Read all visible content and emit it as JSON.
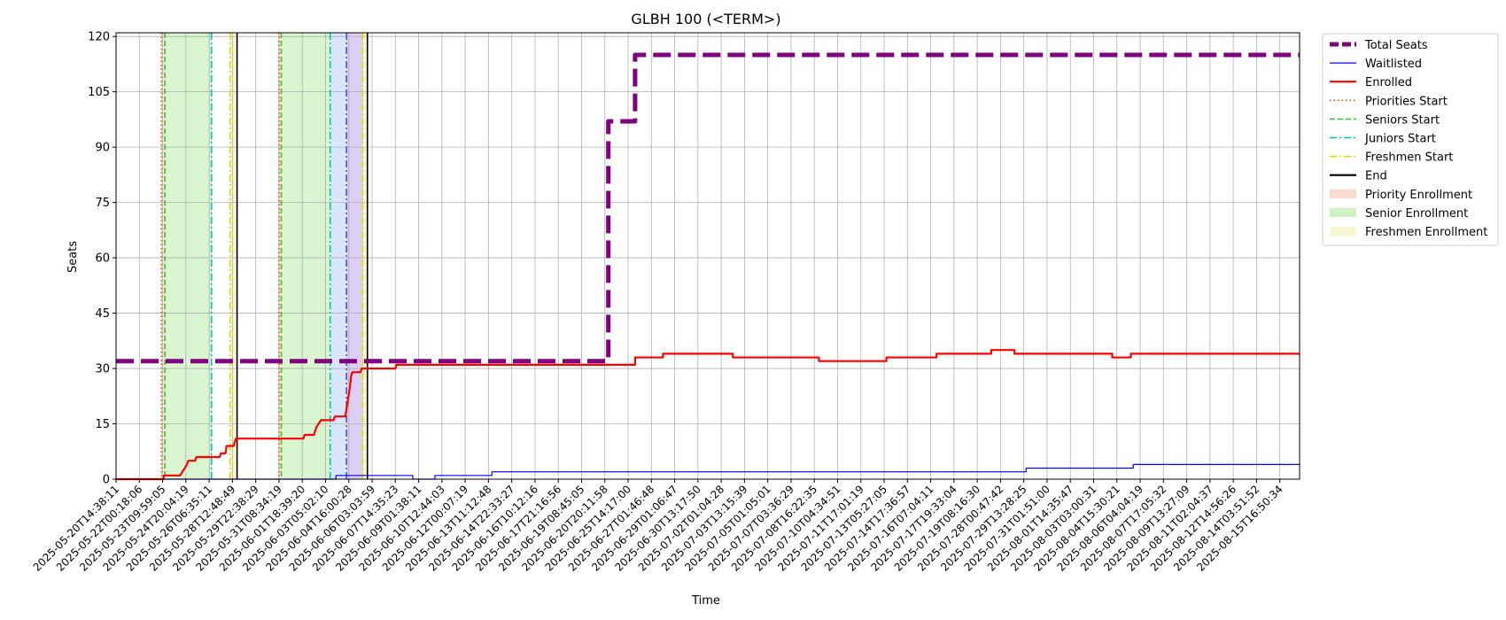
{
  "chart_data": {
    "type": "line",
    "title": "GLBH 100 (<TERM>)",
    "xlabel": "Time",
    "ylabel": "Seats",
    "ylim": [
      0,
      121
    ],
    "yticks": [
      0,
      15,
      30,
      45,
      60,
      75,
      90,
      105,
      120
    ],
    "grid": true,
    "legend_position": "outside-right-top",
    "x_tick_labels": [
      "2025-05-20T14:38:11",
      "2025-05-22T00:18:06",
      "2025-05-23T09:59:05",
      "2025-05-24T20:04:19",
      "2025-05-26T06:35:11",
      "2025-05-28T12:48:49",
      "2025-05-29T22:38:29",
      "2025-05-31T08:34:19",
      "2025-06-01T18:39:20",
      "2025-06-03T05:02:10",
      "2025-06-04T16:00:28",
      "2025-06-06T03:03:59",
      "2025-06-07T14:35:23",
      "2025-06-09T01:38:11",
      "2025-06-10T12:44:03",
      "2025-06-12T00:07:19",
      "2025-06-13T11:12:48",
      "2025-06-14T22:33:27",
      "2025-06-16T10:12:16",
      "2025-06-17T21:16:56",
      "2025-06-19T08:45:05",
      "2025-06-20T20:11:58",
      "2025-06-25T14:17:00",
      "2025-06-27T01:46:48",
      "2025-06-29T01:06:47",
      "2025-06-30T13:17:50",
      "2025-07-02T01:04:28",
      "2025-07-03T13:15:39",
      "2025-07-05T01:05:01",
      "2025-07-07T03:36:29",
      "2025-07-08T16:22:35",
      "2025-07-10T04:34:51",
      "2025-07-11T17:01:19",
      "2025-07-13T05:27:05",
      "2025-07-14T17:36:57",
      "2025-07-16T07:04:11",
      "2025-07-17T19:33:04",
      "2025-07-19T08:16:30",
      "2025-07-28T00:47:42",
      "2025-07-29T13:28:25",
      "2025-07-31T01:51:00",
      "2025-08-01T14:35:47",
      "2025-08-03T03:00:31",
      "2025-08-04T15:30:21",
      "2025-08-06T04:04:19",
      "2025-08-07T17:05:32",
      "2025-08-09T13:27:09",
      "2025-08-11T02:04:37",
      "2025-08-12T14:56:26",
      "2025-08-14T03:51:52",
      "2025-08-15T16:50:34"
    ],
    "x_range_index": [
      0,
      50.85
    ],
    "series": [
      {
        "name": "Total Seats",
        "color": "#800080",
        "style": "dashed-thick",
        "points": [
          [
            0,
            32
          ],
          [
            21.15,
            32
          ],
          [
            21.15,
            97
          ],
          [
            22.3,
            97
          ],
          [
            22.3,
            115
          ],
          [
            50.85,
            115
          ]
        ]
      },
      {
        "name": "Waitlisted",
        "color": "#0000ff",
        "style": "solid-thin",
        "points": [
          [
            0,
            0
          ],
          [
            9.45,
            0
          ],
          [
            9.45,
            1
          ],
          [
            12.75,
            1
          ],
          [
            12.75,
            0
          ],
          [
            13.7,
            0
          ],
          [
            13.7,
            1
          ],
          [
            16.15,
            1
          ],
          [
            16.15,
            2
          ],
          [
            39.1,
            2
          ],
          [
            39.1,
            3
          ],
          [
            43.7,
            3
          ],
          [
            43.7,
            4
          ],
          [
            50.85,
            4
          ]
        ]
      },
      {
        "name": "Enrolled",
        "color": "#ff0000",
        "style": "solid",
        "points": [
          [
            0,
            0
          ],
          [
            2.05,
            0
          ],
          [
            2.05,
            1
          ],
          [
            2.75,
            1
          ],
          [
            2.85,
            2
          ],
          [
            2.95,
            3
          ],
          [
            3.05,
            4
          ],
          [
            3.1,
            5
          ],
          [
            3.4,
            5
          ],
          [
            3.45,
            6
          ],
          [
            4.45,
            6
          ],
          [
            4.5,
            7
          ],
          [
            4.7,
            7
          ],
          [
            4.75,
            9
          ],
          [
            5.05,
            9
          ],
          [
            5.15,
            11
          ],
          [
            8.05,
            11
          ],
          [
            8.1,
            12
          ],
          [
            8.5,
            12
          ],
          [
            8.6,
            14
          ],
          [
            8.7,
            15
          ],
          [
            8.8,
            16
          ],
          [
            9.35,
            16
          ],
          [
            9.4,
            17
          ],
          [
            9.85,
            17
          ],
          [
            9.9,
            19
          ],
          [
            9.95,
            21
          ],
          [
            10.0,
            23
          ],
          [
            10.05,
            25
          ],
          [
            10.1,
            28
          ],
          [
            10.15,
            29
          ],
          [
            10.5,
            29
          ],
          [
            10.55,
            30
          ],
          [
            12.0,
            30
          ],
          [
            12.05,
            31
          ],
          [
            22.3,
            31
          ],
          [
            22.3,
            33
          ],
          [
            23.5,
            33
          ],
          [
            23.5,
            34
          ],
          [
            26.5,
            34
          ],
          [
            26.5,
            33
          ],
          [
            30.2,
            33
          ],
          [
            30.2,
            32
          ],
          [
            33.1,
            32
          ],
          [
            33.1,
            33
          ],
          [
            35.25,
            33
          ],
          [
            35.25,
            34
          ],
          [
            37.6,
            34
          ],
          [
            37.6,
            35
          ],
          [
            38.6,
            35
          ],
          [
            38.6,
            34
          ],
          [
            42.8,
            34
          ],
          [
            42.8,
            33
          ],
          [
            43.6,
            33
          ],
          [
            43.6,
            34
          ],
          [
            50.85,
            34
          ]
        ]
      }
    ],
    "event_lines": [
      {
        "name": "Priorities Start",
        "color": "#ff4500",
        "style": "dotted",
        "x": [
          1.95,
          7.0
        ]
      },
      {
        "name": "Seniors Start",
        "color": "#32cd32",
        "style": "dashed",
        "x": [
          2.1,
          7.1
        ]
      },
      {
        "name": "Juniors Start",
        "color": "#00bfbf",
        "style": "dashdot",
        "x": [
          4.1,
          9.2
        ]
      },
      {
        "name": "Freshmen Start",
        "color": "#e6d800",
        "style": "dashdot",
        "x": [
          4.9,
          10.6
        ]
      },
      {
        "name": "End",
        "color": "#000000",
        "style": "solid",
        "x": [
          5.2,
          10.8
        ]
      },
      {
        "name": "",
        "color": "#5050c8",
        "style": "dashdot",
        "x": [
          9.9
        ]
      }
    ],
    "shaded_regions": [
      {
        "name": "Priority Enrollment",
        "color": "#f4b59a",
        "opacity": 0.45,
        "ranges": [
          [
            1.95,
            2.1
          ],
          [
            7.0,
            7.1
          ]
        ]
      },
      {
        "name": "Senior Enrollment",
        "color": "#9ee58a",
        "opacity": 0.4,
        "ranges": [
          [
            2.1,
            4.1
          ],
          [
            7.1,
            9.2
          ]
        ]
      },
      {
        "name": "",
        "color": "#b8d4ff",
        "opacity": 0.55,
        "ranges": [
          [
            9.2,
            9.9
          ]
        ]
      },
      {
        "name": "",
        "color": "#c9b5ee",
        "opacity": 0.65,
        "ranges": [
          [
            9.9,
            10.6
          ]
        ]
      },
      {
        "name": "Freshmen Enrollment",
        "color": "#f1f1a8",
        "opacity": 0.55,
        "ranges": [
          [
            4.9,
            5.2
          ],
          [
            10.6,
            10.8
          ]
        ]
      }
    ],
    "legend": [
      {
        "label": "Total Seats",
        "kind": "line",
        "color": "#800080",
        "style": "dashed-thick"
      },
      {
        "label": "Waitlisted",
        "kind": "line",
        "color": "#0000ff",
        "style": "solid-thin"
      },
      {
        "label": "Enrolled",
        "kind": "line",
        "color": "#ff0000",
        "style": "solid"
      },
      {
        "label": "Priorities Start",
        "kind": "line",
        "color": "#ff4500",
        "style": "dotted"
      },
      {
        "label": "Seniors Start",
        "kind": "line",
        "color": "#32cd32",
        "style": "dashed"
      },
      {
        "label": "Juniors Start",
        "kind": "line",
        "color": "#00bfbf",
        "style": "dashdot"
      },
      {
        "label": "Freshmen Start",
        "kind": "line",
        "color": "#e6d800",
        "style": "dashdot"
      },
      {
        "label": "End",
        "kind": "line",
        "color": "#000000",
        "style": "solid"
      },
      {
        "label": "Priority Enrollment",
        "kind": "patch",
        "color": "#f4b59a"
      },
      {
        "label": "Senior Enrollment",
        "kind": "patch",
        "color": "#9ee58a"
      },
      {
        "label": "Freshmen Enrollment",
        "kind": "patch",
        "color": "#f1f1a8"
      }
    ]
  }
}
